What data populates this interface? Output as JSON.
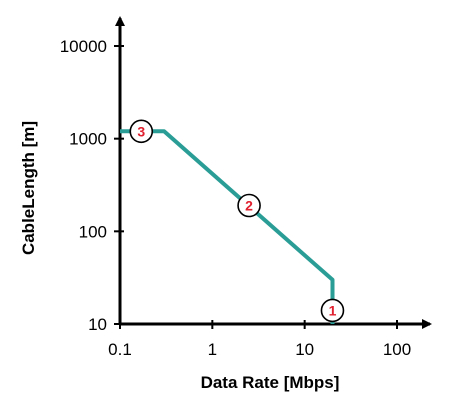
{
  "chart_data": {
    "type": "line",
    "title": "",
    "xlabel": "Data Rate  [Mbps]",
    "ylabel": "CableLength [m]",
    "xscale": "log",
    "yscale": "log",
    "xlim": [
      0.1,
      100
    ],
    "ylim": [
      10,
      10000
    ],
    "xticks": [
      {
        "value": 0.1,
        "label": "0.1"
      },
      {
        "value": 1,
        "label": "1"
      },
      {
        "value": 10,
        "label": "10"
      },
      {
        "value": 100,
        "label": "100"
      }
    ],
    "yticks": [
      {
        "value": 10,
        "label": "10"
      },
      {
        "value": 100,
        "label": "100"
      },
      {
        "value": 1000,
        "label": "1000"
      },
      {
        "value": 10000,
        "label": "10000"
      }
    ],
    "grid": false,
    "legend": "none",
    "series": [
      {
        "color": "#2a9d96",
        "x": [
          0.1,
          0.3,
          20,
          20
        ],
        "y": [
          1200,
          1200,
          30,
          10
        ]
      }
    ],
    "markers": [
      {
        "label": "3",
        "x": 0.17,
        "y": 1200
      },
      {
        "label": "2",
        "x": 2.5,
        "y": 190
      },
      {
        "label": "1",
        "x": 20,
        "y": 14
      }
    ],
    "marker_text_color": "#e0202e",
    "axis_color": "#000000"
  }
}
